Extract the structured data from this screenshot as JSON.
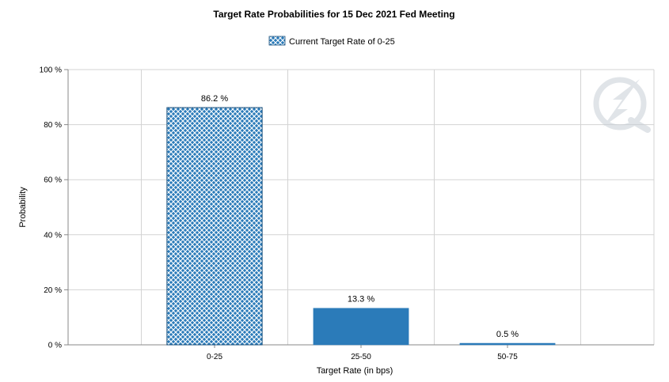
{
  "colors": {
    "bar": "#2b7bb9",
    "current_bar_fill": "#2b7bb9",
    "current_bar_hatch": "#ffffff",
    "grid": "#d3d3d3",
    "watermark": "#c8cfd6"
  },
  "chart_data": {
    "type": "bar",
    "title": "Target Rate Probabilities for 15 Dec 2021 Fed Meeting",
    "xlabel": "Target Rate (in bps)",
    "ylabel": "Probability",
    "categories": [
      "0-25",
      "25-50",
      "50-75"
    ],
    "values": [
      86.2,
      13.3,
      0.5
    ],
    "value_labels": [
      "86.2 %",
      "13.3 %",
      "0.5 %"
    ],
    "highlighted_category": "0-25",
    "ylim": [
      0,
      100
    ],
    "yticks": [
      0,
      20,
      40,
      60,
      80,
      100
    ],
    "ytick_labels": [
      "0 %",
      "20 %",
      "40 %",
      "60 %",
      "80 %",
      "100 %"
    ],
    "legend": {
      "label": "Current Target Rate of 0-25",
      "position": "top-center"
    },
    "grid": true
  }
}
